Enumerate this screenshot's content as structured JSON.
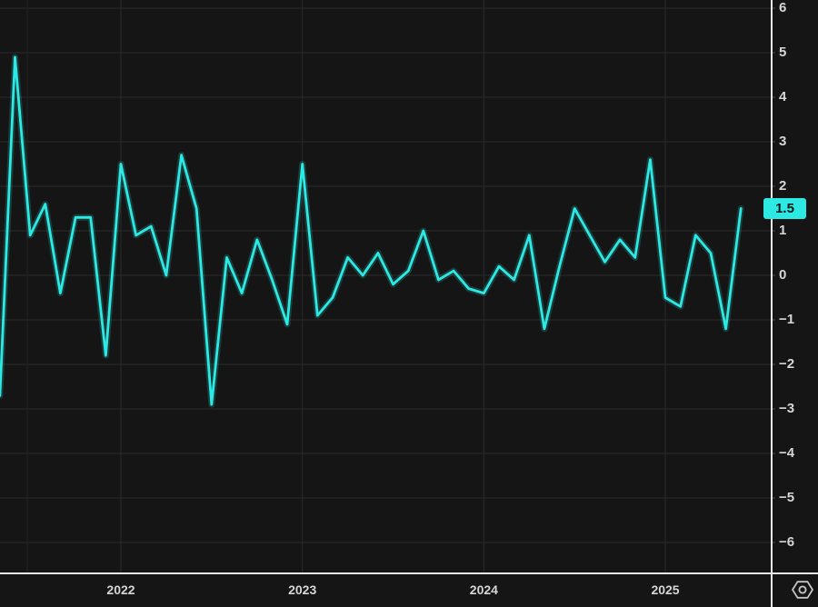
{
  "window": {
    "kind": "terminal-line-chart"
  },
  "colors": {
    "background": "#151515",
    "grid": "#2b2b2b",
    "grid_minor": "#222222",
    "axis_line": "#e8e8e8",
    "tick": "#4a4a4a",
    "label_text": "#d6d6d6",
    "series": "#2ce9e3",
    "badge_bg": "#2ce9e3",
    "badge_text": "#061616"
  },
  "chart_data": {
    "type": "line",
    "title": "",
    "xlabel": "",
    "ylabel": "",
    "grid": true,
    "legend": "none",
    "axis_position": "right",
    "ylim": [
      -6.8,
      6.2
    ],
    "y_ticks": [
      6,
      5,
      4,
      3,
      2,
      1,
      0,
      -1,
      -2,
      -3,
      -4,
      -5,
      -6
    ],
    "y_tick_labels": [
      "6",
      "5",
      "4",
      "3",
      "2",
      "1",
      "0",
      "−1",
      "−2",
      "−3",
      "−4",
      "−5",
      "−6"
    ],
    "x": [
      "2021-05",
      "2021-06",
      "2021-07",
      "2021-08",
      "2021-09",
      "2021-10",
      "2021-11",
      "2021-12",
      "2022-01",
      "2022-02",
      "2022-03",
      "2022-04",
      "2022-05",
      "2022-06",
      "2022-07",
      "2022-08",
      "2022-09",
      "2022-10",
      "2022-11",
      "2022-12",
      "2023-01",
      "2023-02",
      "2023-03",
      "2023-04",
      "2023-05",
      "2023-06",
      "2023-07",
      "2023-08",
      "2023-09",
      "2023-10",
      "2023-11",
      "2023-12",
      "2024-01",
      "2024-02",
      "2024-03",
      "2024-04",
      "2024-05",
      "2024-06",
      "2024-07",
      "2024-08",
      "2024-09",
      "2024-10",
      "2024-11",
      "2024-12",
      "2025-01",
      "2025-02",
      "2025-03",
      "2025-04",
      "2025-05",
      "2025-06"
    ],
    "values": [
      -2.7,
      4.9,
      0.9,
      1.6,
      -0.4,
      1.3,
      1.3,
      -1.8,
      2.5,
      0.9,
      1.1,
      0.0,
      2.7,
      1.5,
      -2.9,
      0.4,
      -0.4,
      0.8,
      -0.1,
      -1.1,
      2.5,
      -0.9,
      -0.5,
      0.4,
      0.0,
      0.5,
      -0.2,
      0.1,
      1.0,
      -0.1,
      0.1,
      -0.3,
      -0.4,
      0.2,
      -0.1,
      0.9,
      -1.2,
      0.2,
      1.5,
      0.9,
      0.3,
      0.8,
      0.4,
      2.6,
      -0.5,
      -0.7,
      0.9,
      0.5,
      -1.2,
      1.5
    ],
    "x_year_ticks": [
      {
        "label": "2022",
        "month_index": 8
      },
      {
        "label": "2023",
        "month_index": 20
      },
      {
        "label": "2024",
        "month_index": 32
      },
      {
        "label": "2025",
        "month_index": 44
      }
    ],
    "last_value_label": "1.5"
  },
  "icons": {
    "settings": "hexagon-gear"
  }
}
